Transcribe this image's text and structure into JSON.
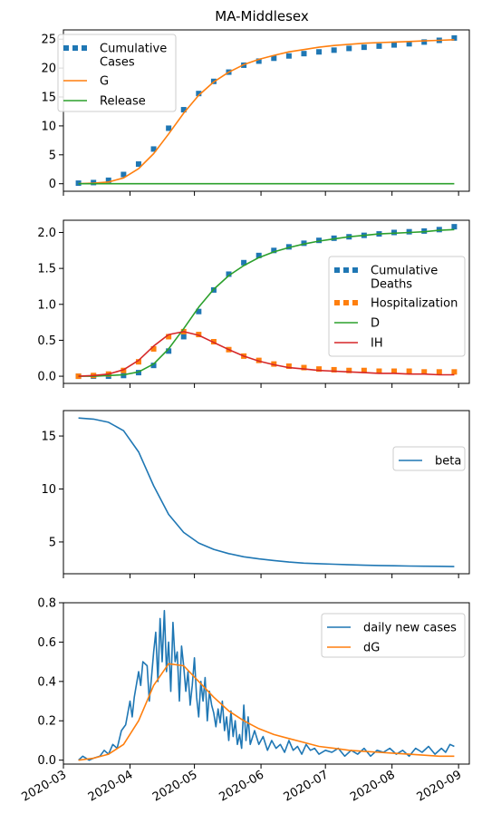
{
  "title": "MA-Middlesex",
  "x_tick_labels": [
    "2020-03",
    "2020-04",
    "2020-05",
    "2020-06",
    "2020-07",
    "2020-08",
    "2020-09"
  ],
  "colors": {
    "blue": "#1f77b4",
    "orange": "#ff7f0e",
    "green": "#2ca02c",
    "red": "#d62728"
  },
  "chart_data": [
    {
      "type": "line",
      "title": "MA-Middlesex",
      "x": [
        "2020-03-08",
        "2020-03-15",
        "2020-03-22",
        "2020-03-29",
        "2020-04-05",
        "2020-04-12",
        "2020-04-19",
        "2020-04-26",
        "2020-05-03",
        "2020-05-10",
        "2020-05-17",
        "2020-05-24",
        "2020-05-31",
        "2020-06-07",
        "2020-06-14",
        "2020-06-21",
        "2020-06-28",
        "2020-07-05",
        "2020-07-12",
        "2020-07-19",
        "2020-07-26",
        "2020-08-02",
        "2020-08-09",
        "2020-08-16",
        "2020-08-23",
        "2020-08-30"
      ],
      "xlim": [
        "2020-03-01",
        "2020-09-06"
      ],
      "ylim": [
        -1.3,
        26.6
      ],
      "yticks": [
        0,
        5,
        10,
        15,
        20,
        25
      ],
      "legend": "upper-left",
      "series": [
        {
          "name": "Cumulative\nCases",
          "style": "dotted",
          "color": "blue",
          "values": [
            0.1,
            0.2,
            0.6,
            1.6,
            3.4,
            6.0,
            9.6,
            12.8,
            15.6,
            17.7,
            19.3,
            20.5,
            21.2,
            21.7,
            22.1,
            22.5,
            22.8,
            23.1,
            23.4,
            23.6,
            23.8,
            24.0,
            24.2,
            24.5,
            24.8,
            25.2
          ]
        },
        {
          "name": "G",
          "style": "solid",
          "color": "orange",
          "values": [
            0.0,
            0.1,
            0.3,
            1.0,
            2.6,
            5.2,
            8.6,
            12.2,
            15.3,
            17.6,
            19.3,
            20.6,
            21.5,
            22.2,
            22.8,
            23.2,
            23.6,
            23.9,
            24.1,
            24.3,
            24.4,
            24.5,
            24.6,
            24.7,
            24.8,
            24.9
          ]
        },
        {
          "name": "Release",
          "style": "solid",
          "color": "green",
          "values": [
            0,
            0,
            0,
            0,
            0,
            0,
            0,
            0,
            0,
            0,
            0,
            0,
            0,
            0,
            0,
            0,
            0,
            0,
            0,
            0,
            0,
            0,
            0,
            0,
            0,
            0
          ]
        }
      ]
    },
    {
      "type": "line",
      "x": [
        "2020-03-08",
        "2020-03-15",
        "2020-03-22",
        "2020-03-29",
        "2020-04-05",
        "2020-04-12",
        "2020-04-19",
        "2020-04-26",
        "2020-05-03",
        "2020-05-10",
        "2020-05-17",
        "2020-05-24",
        "2020-05-31",
        "2020-06-07",
        "2020-06-14",
        "2020-06-21",
        "2020-06-28",
        "2020-07-05",
        "2020-07-12",
        "2020-07-19",
        "2020-07-26",
        "2020-08-02",
        "2020-08-09",
        "2020-08-16",
        "2020-08-23",
        "2020-08-30"
      ],
      "xlim": [
        "2020-03-01",
        "2020-09-06"
      ],
      "ylim": [
        -0.1,
        2.17
      ],
      "yticks": [
        0.0,
        0.5,
        1.0,
        1.5,
        2.0
      ],
      "legend": "center-right",
      "series": [
        {
          "name": "Cumulative\nDeaths",
          "style": "dotted",
          "color": "blue",
          "values": [
            0.0,
            0.0,
            0.0,
            0.01,
            0.05,
            0.15,
            0.35,
            0.55,
            0.9,
            1.2,
            1.42,
            1.58,
            1.68,
            1.75,
            1.8,
            1.85,
            1.89,
            1.92,
            1.94,
            1.96,
            1.98,
            2.0,
            2.01,
            2.02,
            2.04,
            2.08
          ]
        },
        {
          "name": "Hospitalization",
          "style": "dotted",
          "color": "orange",
          "values": [
            0.0,
            0.01,
            0.03,
            0.08,
            0.2,
            0.38,
            0.55,
            0.62,
            0.58,
            0.48,
            0.37,
            0.28,
            0.22,
            0.17,
            0.14,
            0.12,
            0.1,
            0.09,
            0.08,
            0.08,
            0.07,
            0.07,
            0.07,
            0.06,
            0.06,
            0.06
          ]
        },
        {
          "name": "D",
          "style": "solid",
          "color": "green",
          "values": [
            0.0,
            0.0,
            0.01,
            0.02,
            0.06,
            0.17,
            0.38,
            0.66,
            0.96,
            1.21,
            1.4,
            1.54,
            1.65,
            1.73,
            1.79,
            1.84,
            1.88,
            1.91,
            1.94,
            1.96,
            1.98,
            1.99,
            2.0,
            2.01,
            2.03,
            2.04
          ]
        },
        {
          "name": "IH",
          "style": "solid",
          "color": "red",
          "values": [
            0.0,
            0.01,
            0.03,
            0.09,
            0.22,
            0.42,
            0.58,
            0.62,
            0.57,
            0.47,
            0.37,
            0.28,
            0.21,
            0.16,
            0.12,
            0.1,
            0.08,
            0.07,
            0.06,
            0.05,
            0.04,
            0.04,
            0.03,
            0.03,
            0.02,
            0.02
          ]
        }
      ]
    },
    {
      "type": "line",
      "x": [
        "2020-03-08",
        "2020-03-15",
        "2020-03-22",
        "2020-03-29",
        "2020-04-05",
        "2020-04-12",
        "2020-04-19",
        "2020-04-26",
        "2020-05-03",
        "2020-05-10",
        "2020-05-17",
        "2020-05-24",
        "2020-05-31",
        "2020-06-07",
        "2020-06-14",
        "2020-06-21",
        "2020-06-28",
        "2020-07-05",
        "2020-07-12",
        "2020-07-19",
        "2020-07-26",
        "2020-08-02",
        "2020-08-09",
        "2020-08-16",
        "2020-08-23",
        "2020-08-30"
      ],
      "xlim": [
        "2020-03-01",
        "2020-09-06"
      ],
      "ylim": [
        2.0,
        17.4
      ],
      "yticks": [
        5,
        10,
        15
      ],
      "legend": "upper-right",
      "series": [
        {
          "name": "beta",
          "style": "solid",
          "color": "blue",
          "values": [
            16.7,
            16.6,
            16.3,
            15.5,
            13.5,
            10.3,
            7.6,
            5.9,
            4.9,
            4.3,
            3.9,
            3.6,
            3.4,
            3.25,
            3.1,
            3.0,
            2.95,
            2.9,
            2.85,
            2.8,
            2.78,
            2.75,
            2.73,
            2.71,
            2.7,
            2.68
          ]
        }
      ]
    },
    {
      "type": "line",
      "xlim": [
        "2020-03-01",
        "2020-09-06"
      ],
      "ylim": [
        -0.02,
        0.8
      ],
      "yticks": [
        0.0,
        0.2,
        0.4,
        0.6,
        0.8
      ],
      "legend": "upper-right",
      "series": [
        {
          "name": "daily new cases",
          "style": "solid",
          "color": "blue",
          "x": [
            "2020-03-08",
            "2020-03-10",
            "2020-03-13",
            "2020-03-15",
            "2020-03-18",
            "2020-03-20",
            "2020-03-22",
            "2020-03-24",
            "2020-03-26",
            "2020-03-28",
            "2020-03-30",
            "2020-04-01",
            "2020-04-02",
            "2020-04-03",
            "2020-04-05",
            "2020-04-06",
            "2020-04-07",
            "2020-04-09",
            "2020-04-10",
            "2020-04-11",
            "2020-04-12",
            "2020-04-13",
            "2020-04-14",
            "2020-04-15",
            "2020-04-16",
            "2020-04-17",
            "2020-04-18",
            "2020-04-19",
            "2020-04-20",
            "2020-04-21",
            "2020-04-22",
            "2020-04-23",
            "2020-04-24",
            "2020-04-25",
            "2020-04-26",
            "2020-04-27",
            "2020-04-28",
            "2020-04-29",
            "2020-04-30",
            "2020-05-01",
            "2020-05-02",
            "2020-05-03",
            "2020-05-04",
            "2020-05-05",
            "2020-05-06",
            "2020-05-07",
            "2020-05-08",
            "2020-05-09",
            "2020-05-10",
            "2020-05-11",
            "2020-05-12",
            "2020-05-13",
            "2020-05-14",
            "2020-05-15",
            "2020-05-16",
            "2020-05-17",
            "2020-05-18",
            "2020-05-19",
            "2020-05-20",
            "2020-05-21",
            "2020-05-22",
            "2020-05-23",
            "2020-05-24",
            "2020-05-25",
            "2020-05-26",
            "2020-05-27",
            "2020-05-29",
            "2020-05-31",
            "2020-06-02",
            "2020-06-04",
            "2020-06-06",
            "2020-06-08",
            "2020-06-10",
            "2020-06-12",
            "2020-06-14",
            "2020-06-16",
            "2020-06-18",
            "2020-06-20",
            "2020-06-22",
            "2020-06-24",
            "2020-06-26",
            "2020-06-28",
            "2020-07-01",
            "2020-07-04",
            "2020-07-07",
            "2020-07-10",
            "2020-07-13",
            "2020-07-16",
            "2020-07-19",
            "2020-07-22",
            "2020-07-25",
            "2020-07-28",
            "2020-07-31",
            "2020-08-03",
            "2020-08-06",
            "2020-08-09",
            "2020-08-12",
            "2020-08-15",
            "2020-08-18",
            "2020-08-21",
            "2020-08-24",
            "2020-08-26",
            "2020-08-28",
            "2020-08-30"
          ],
          "values": [
            0.0,
            0.02,
            0.0,
            0.01,
            0.02,
            0.05,
            0.03,
            0.08,
            0.06,
            0.15,
            0.18,
            0.3,
            0.22,
            0.32,
            0.45,
            0.38,
            0.5,
            0.48,
            0.3,
            0.42,
            0.55,
            0.65,
            0.4,
            0.72,
            0.5,
            0.76,
            0.45,
            0.6,
            0.35,
            0.7,
            0.5,
            0.55,
            0.3,
            0.58,
            0.48,
            0.35,
            0.45,
            0.28,
            0.38,
            0.52,
            0.32,
            0.22,
            0.4,
            0.3,
            0.42,
            0.2,
            0.35,
            0.28,
            0.24,
            0.17,
            0.26,
            0.19,
            0.3,
            0.15,
            0.22,
            0.1,
            0.25,
            0.12,
            0.2,
            0.08,
            0.13,
            0.06,
            0.28,
            0.1,
            0.22,
            0.08,
            0.15,
            0.08,
            0.12,
            0.05,
            0.1,
            0.06,
            0.08,
            0.04,
            0.1,
            0.05,
            0.07,
            0.03,
            0.08,
            0.05,
            0.06,
            0.03,
            0.05,
            0.04,
            0.06,
            0.02,
            0.05,
            0.03,
            0.06,
            0.02,
            0.05,
            0.04,
            0.06,
            0.03,
            0.05,
            0.02,
            0.06,
            0.04,
            0.07,
            0.03,
            0.06,
            0.04,
            0.08,
            0.07
          ]
        },
        {
          "name": "dG",
          "style": "solid",
          "color": "orange",
          "x": [
            "2020-03-08",
            "2020-03-15",
            "2020-03-22",
            "2020-03-29",
            "2020-04-05",
            "2020-04-12",
            "2020-04-19",
            "2020-04-26",
            "2020-05-03",
            "2020-05-10",
            "2020-05-17",
            "2020-05-24",
            "2020-05-31",
            "2020-06-07",
            "2020-06-14",
            "2020-06-21",
            "2020-06-28",
            "2020-07-05",
            "2020-07-12",
            "2020-07-19",
            "2020-07-26",
            "2020-08-02",
            "2020-08-09",
            "2020-08-16",
            "2020-08-23",
            "2020-08-30"
          ],
          "values": [
            0.0,
            0.01,
            0.03,
            0.08,
            0.2,
            0.38,
            0.49,
            0.48,
            0.4,
            0.32,
            0.25,
            0.2,
            0.16,
            0.13,
            0.11,
            0.09,
            0.07,
            0.06,
            0.05,
            0.045,
            0.04,
            0.035,
            0.03,
            0.025,
            0.02,
            0.02
          ]
        }
      ]
    }
  ]
}
